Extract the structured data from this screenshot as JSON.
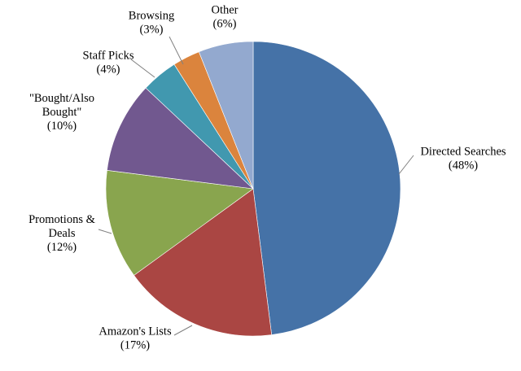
{
  "chart_data": {
    "type": "pie",
    "title": "",
    "start": "12 o'clock",
    "direction": "clockwise",
    "legend": "none",
    "slices": [
      {
        "label_lines": [
          "Directed Searches"
        ],
        "value_label": "(48%)",
        "value": 48,
        "color": "#4572A7"
      },
      {
        "label_lines": [
          "Amazon's Lists"
        ],
        "value_label": "(17%)",
        "value": 17,
        "color": "#AA4643"
      },
      {
        "label_lines": [
          "Promotions &",
          "Deals"
        ],
        "value_label": "(12%)",
        "value": 12,
        "color": "#89A54E"
      },
      {
        "label_lines": [
          "\"Bought/Also",
          "Bought\""
        ],
        "value_label": "(10%)",
        "value": 10,
        "color": "#71588F"
      },
      {
        "label_lines": [
          "Staff Picks"
        ],
        "value_label": "(4%)",
        "value": 4,
        "color": "#4198AF"
      },
      {
        "label_lines": [
          "Browsing"
        ],
        "value_label": "(3%)",
        "value": 3,
        "color": "#DB843D"
      },
      {
        "label_lines": [
          "Other"
        ],
        "value_label": "(6%)",
        "value": 6,
        "color": "#93A9CF"
      }
    ]
  }
}
